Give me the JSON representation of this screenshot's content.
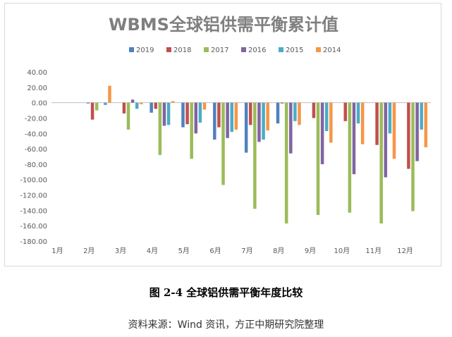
{
  "chart_data": {
    "type": "bar",
    "title": "WBMS全球铝供需平衡累计值",
    "xlabel": "",
    "ylabel": "",
    "ylim": [
      -180,
      40
    ],
    "yticks": [
      "40.00",
      "20.00",
      "0.00",
      "-20.00",
      "-40.00",
      "-60.00",
      "-80.00",
      "-100.00",
      "-120.00",
      "-140.00",
      "-160.00",
      "-180.00"
    ],
    "ytick_values": [
      40,
      20,
      0,
      -20,
      -40,
      -60,
      -80,
      -100,
      -120,
      -140,
      -160,
      -180
    ],
    "categories": [
      "1月",
      "2月",
      "3月",
      "4月",
      "5月",
      "6月",
      "7月",
      "8月",
      "9月",
      "10月",
      "11月",
      "12月"
    ],
    "legend_position": "top",
    "series": [
      {
        "name": "2019",
        "color": "#4f81bd",
        "values": [
          0,
          -1,
          0,
          -13,
          -32,
          -48,
          -65,
          -27,
          0,
          0,
          0,
          0
        ]
      },
      {
        "name": "2018",
        "color": "#c0504d",
        "values": [
          0,
          -22,
          -14,
          -8,
          -28,
          -32,
          -29,
          -1,
          -20,
          -24,
          -55,
          -86
        ]
      },
      {
        "name": "2017",
        "color": "#9bbb59",
        "values": [
          0,
          -10,
          -35,
          -68,
          -73,
          -107,
          -138,
          -157,
          -146,
          -143,
          -157,
          -141
        ]
      },
      {
        "name": "2016",
        "color": "#8064a2",
        "values": [
          0,
          0,
          4,
          -30,
          -40,
          -46,
          -51,
          -66,
          -80,
          -93,
          -97,
          -76
        ]
      },
      {
        "name": "2015",
        "color": "#4bacc6",
        "values": [
          0,
          -3,
          -8,
          -29,
          -26,
          -38,
          -48,
          -24,
          -37,
          -27,
          -40,
          -35
        ]
      },
      {
        "name": "2014",
        "color": "#f79646",
        "values": [
          0,
          22,
          -2,
          2,
          -9,
          -35,
          -36,
          -29,
          -52,
          -54,
          -73,
          -58
        ]
      }
    ]
  },
  "caption": "图 2-4  全球铝供需平衡年度比较",
  "source": "资料来源：Wind 资讯，方正中期研究院整理"
}
